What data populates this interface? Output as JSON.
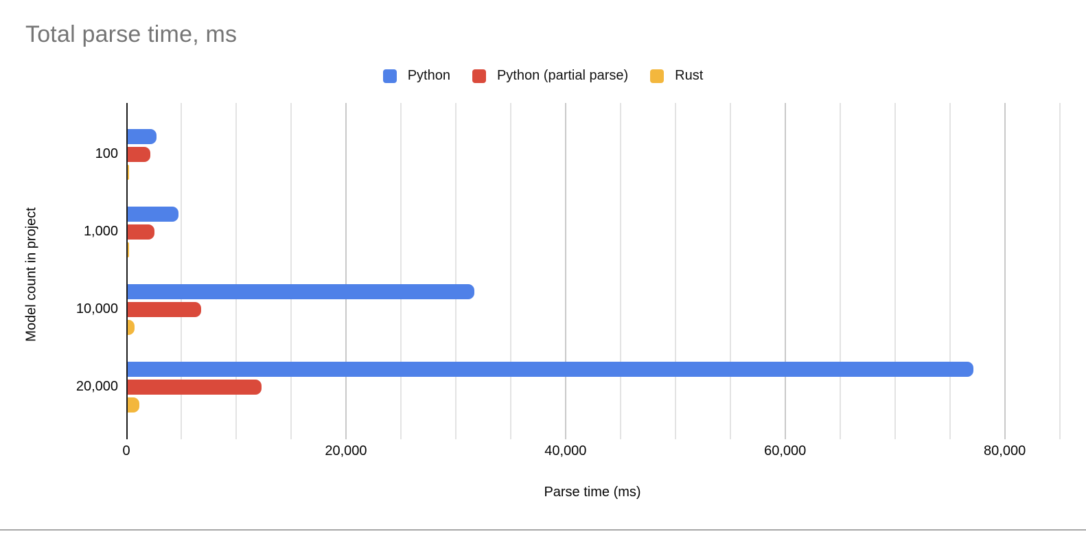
{
  "chart": {
    "title": "Total parse time, ms",
    "title_color": "#757575",
    "xlabel": "Parse time (ms)",
    "ylabel": "Model count in project"
  },
  "chart_data": {
    "type": "bar",
    "orientation": "horizontal",
    "title": "Total parse time, ms",
    "xlabel": "Parse time (ms)",
    "ylabel": "Model count in project",
    "categories": [
      "100",
      "1,000",
      "10,000",
      "20,000"
    ],
    "series": [
      {
        "name": "Python",
        "color": "#4f81e8",
        "values": [
          2650,
          4650,
          31600,
          77000
        ]
      },
      {
        "name": "Python (partial parse)",
        "color": "#da4a3b",
        "values": [
          2050,
          2450,
          6700,
          12200
        ]
      },
      {
        "name": "Rust",
        "color": "#f3b73d",
        "values": [
          110,
          130,
          620,
          1060
        ]
      }
    ],
    "x_ticks": [
      0,
      20000,
      40000,
      60000,
      80000
    ],
    "x_tick_labels": [
      "0",
      "20,000",
      "40,000",
      "60,000",
      "80,000"
    ],
    "x_minor_step": 5000,
    "x_grid_max": 85000,
    "xlim": [
      0,
      87400
    ],
    "legend_position": "top",
    "grid": "vertical",
    "gridline_minor_color": "#e3e3e3",
    "gridline_major_color": "#c9c9c9",
    "axis_line_color": "#1a1a1a"
  }
}
